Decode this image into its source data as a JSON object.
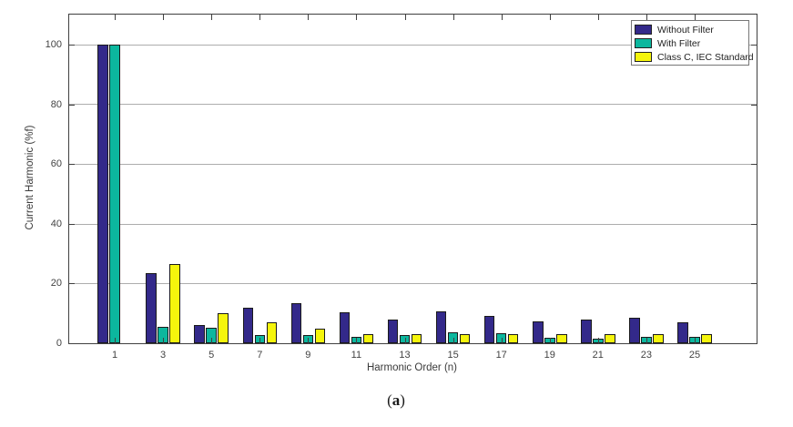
{
  "figure": {
    "label": {
      "open": "(",
      "letter": "a",
      "close": ")"
    }
  },
  "chart_data": {
    "type": "bar",
    "title": "",
    "xlabel": "Harmonic Order (n)",
    "ylabel": "Current Harmonic (%f)",
    "categories": [
      "1",
      "3",
      "5",
      "7",
      "9",
      "11",
      "13",
      "15",
      "17",
      "19",
      "21",
      "23",
      "25"
    ],
    "series": [
      {
        "name": "Without Filter",
        "color": "#33298a",
        "values": [
          100,
          23.5,
          6,
          12,
          13.5,
          10.5,
          8,
          10.7,
          9.2,
          7.4,
          8,
          8.5,
          6.9
        ]
      },
      {
        "name": "With Filter",
        "color": "#0cb79e",
        "values": [
          100,
          5.5,
          5.3,
          2.8,
          2.8,
          2,
          2.7,
          3.6,
          3.4,
          1.7,
          1.6,
          2.2,
          2
        ]
      },
      {
        "name": "Class C, IEC Standard",
        "color": "#f5f50c",
        "values": [
          0,
          26.5,
          10,
          7,
          5,
          3,
          3,
          3,
          3,
          3,
          3,
          3,
          3
        ]
      }
    ],
    "yticks": [
      0,
      20,
      40,
      60,
      80,
      100
    ],
    "ylim": [
      0,
      110
    ],
    "grid": "horizontal-only",
    "legend_position": "top-right-inside",
    "colors": {
      "bar_edge": "#1a1a1a",
      "gridline": "#adadad",
      "axis": "#404040",
      "tick_text": "#434343"
    }
  }
}
